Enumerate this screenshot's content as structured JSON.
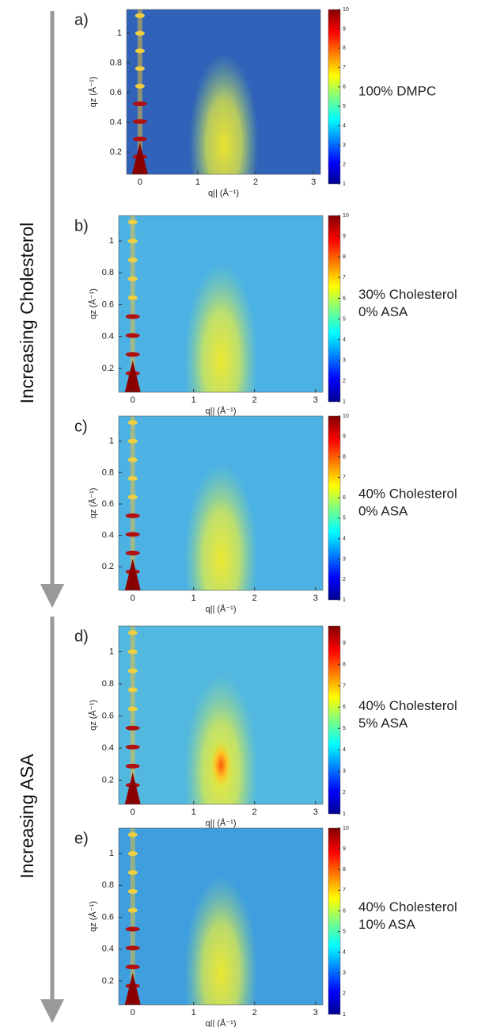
{
  "arrows": [
    {
      "label": "Increasing Cholesterol"
    },
    {
      "label": "Increasing ASA"
    }
  ],
  "chart_data": [
    {
      "type": "heatmap",
      "panel": "a)",
      "annotation": [
        "100% DMPC"
      ],
      "x_label": "q|| (Å⁻¹)",
      "y_label": "qz (Å⁻¹)",
      "xlim": [
        -0.23,
        3.12
      ],
      "ylim": [
        0.05,
        1.16
      ],
      "xticks": [
        0,
        1,
        2,
        3
      ],
      "yticks": [
        0.2,
        0.4,
        0.6,
        0.8,
        1
      ],
      "colorbar": {
        "clim": [
          1,
          10
        ],
        "ticks": [
          1,
          2,
          3,
          4,
          5,
          6,
          7,
          8,
          9,
          10
        ]
      }
    },
    {
      "type": "heatmap",
      "panel": "b)",
      "annotation": [
        "30% Cholesterol",
        "0% ASA"
      ],
      "x_label": "q|| (Å⁻¹)",
      "y_label": "qz (Å⁻¹)",
      "xlim": [
        -0.23,
        3.12
      ],
      "ylim": [
        0.05,
        1.16
      ],
      "xticks": [
        0,
        1,
        2,
        3
      ],
      "yticks": [
        0.2,
        0.4,
        0.6,
        0.8,
        1
      ],
      "colorbar": {
        "clim": [
          1,
          10
        ],
        "ticks": [
          1,
          2,
          3,
          4,
          5,
          6,
          7,
          8,
          9,
          10
        ]
      }
    },
    {
      "type": "heatmap",
      "panel": "c)",
      "annotation": [
        "40% Cholesterol",
        "0% ASA"
      ],
      "x_label": "q|| (Å⁻¹)",
      "y_label": "qz (Å⁻¹)",
      "xlim": [
        -0.23,
        3.12
      ],
      "ylim": [
        0.05,
        1.16
      ],
      "xticks": [
        0,
        1,
        2,
        3
      ],
      "yticks": [
        0.2,
        0.4,
        0.6,
        0.8,
        1
      ],
      "colorbar": {
        "clim": [
          1,
          10
        ],
        "ticks": [
          1,
          2,
          3,
          4,
          5,
          6,
          7,
          8,
          9,
          10
        ]
      }
    },
    {
      "type": "heatmap",
      "panel": "d)",
      "annotation": [
        "40% Cholesterol",
        "5% ASA"
      ],
      "x_label": "q|| (Å⁻¹)",
      "y_label": "qz (Å⁻¹)",
      "xlim": [
        -0.23,
        3.12
      ],
      "ylim": [
        0.05,
        1.16
      ],
      "xticks": [
        0,
        1,
        2,
        3
      ],
      "yticks": [
        0.2,
        0.4,
        0.6,
        0.8,
        1
      ],
      "colorbar": {
        "clim": [
          1,
          9.8
        ],
        "ticks": [
          1,
          2,
          3,
          4,
          5,
          6,
          7,
          8,
          9
        ]
      }
    },
    {
      "type": "heatmap",
      "panel": "e)",
      "annotation": [
        "40% Cholesterol",
        "10% ASA"
      ],
      "x_label": "q|| (Å⁻¹)",
      "y_label": "qz (Å⁻¹)",
      "xlim": [
        -0.23,
        3.12
      ],
      "ylim": [
        0.05,
        1.16
      ],
      "xticks": [
        0,
        1,
        2,
        3
      ],
      "yticks": [
        0.2,
        0.4,
        0.6,
        0.8,
        1
      ],
      "colorbar": {
        "clim": [
          1,
          10
        ],
        "ticks": [
          1,
          2,
          3,
          4,
          5,
          6,
          7,
          8,
          9,
          10
        ]
      }
    }
  ]
}
